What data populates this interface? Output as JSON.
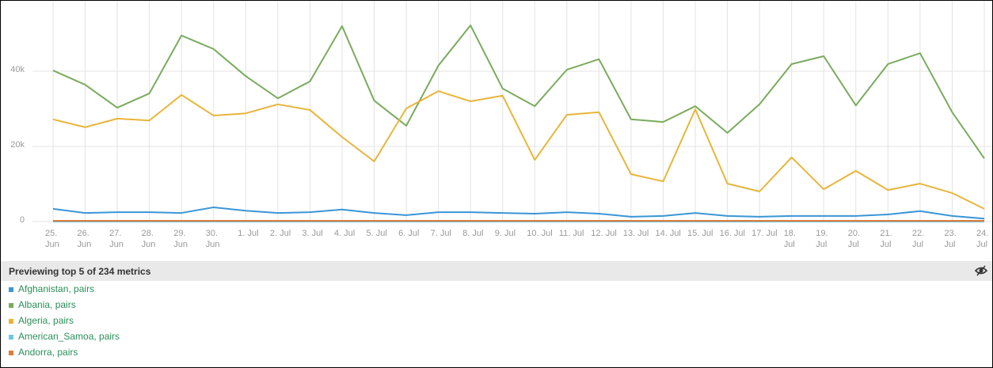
{
  "chart_data": {
    "type": "line",
    "categories": [
      "25.\nJun",
      "26.\nJun",
      "27.\nJun",
      "28.\nJun",
      "29.\nJun",
      "30.\nJun",
      "1. Jul",
      "2. Jul",
      "3. Jul",
      "4. Jul",
      "5. Jul",
      "6. Jul",
      "7. Jul",
      "8. Jul",
      "9. Jul",
      "10. Jul",
      "11. Jul",
      "12. Jul",
      "13. Jul",
      "14. Jul",
      "15. Jul",
      "16. Jul",
      "17. Jul",
      "18.\nJul",
      "19.\nJul",
      "20.\nJul",
      "21.\nJul",
      "22.\nJul",
      "23.\nJul",
      "24.\nJul"
    ],
    "series": [
      {
        "name": "Afghanistan, pairs",
        "color": "#3a96d6",
        "values": [
          3400,
          2300,
          2500,
          2500,
          2300,
          3800,
          2900,
          2300,
          2500,
          3200,
          2300,
          1700,
          2500,
          2500,
          2300,
          2100,
          2500,
          2100,
          1300,
          1500,
          2300,
          1500,
          1300,
          1500,
          1500,
          1500,
          1900,
          2800,
          1500,
          800
        ]
      },
      {
        "name": "Albania, pairs",
        "color": "#7aab5e",
        "values": [
          40200,
          36400,
          30300,
          34100,
          49500,
          45900,
          38700,
          32800,
          37300,
          52000,
          32200,
          25500,
          41500,
          52200,
          35400,
          30700,
          40400,
          43200,
          27200,
          26500,
          30700,
          23600,
          31200,
          41900,
          44000,
          30900,
          41900,
          44800,
          29100,
          16800
        ]
      },
      {
        "name": "Algeria, pairs",
        "color": "#e8b53a",
        "values": [
          27200,
          25100,
          27400,
          26900,
          33700,
          28200,
          28800,
          31200,
          29700,
          22500,
          16000,
          30100,
          34700,
          32000,
          33500,
          16400,
          28400,
          29100,
          12600,
          10700,
          29900,
          10100,
          8000,
          17100,
          8600,
          13500,
          8400,
          10100,
          7600,
          3400
        ]
      },
      {
        "name": "American_Samoa, pairs",
        "color": "#6ec6e0",
        "values": [
          0,
          0,
          0,
          0,
          0,
          0,
          0,
          0,
          0,
          0,
          0,
          0,
          0,
          0,
          0,
          0,
          0,
          0,
          0,
          0,
          0,
          0,
          0,
          0,
          0,
          0,
          0,
          0,
          0,
          0
        ]
      },
      {
        "name": "Andorra, pairs",
        "color": "#e07a3a",
        "values": [
          200,
          200,
          200,
          200,
          200,
          200,
          200,
          200,
          200,
          200,
          200,
          200,
          200,
          200,
          200,
          200,
          200,
          200,
          200,
          200,
          200,
          200,
          200,
          200,
          200,
          200,
          200,
          200,
          200,
          200
        ]
      }
    ],
    "ylim": [
      0,
      56000
    ],
    "yticks": [
      0,
      {
        "value": 20000,
        "label": "20k"
      },
      {
        "value": 40000,
        "label": "40k"
      }
    ],
    "grid": true
  },
  "legend_title": "Previewing top 5 of 234 metrics"
}
